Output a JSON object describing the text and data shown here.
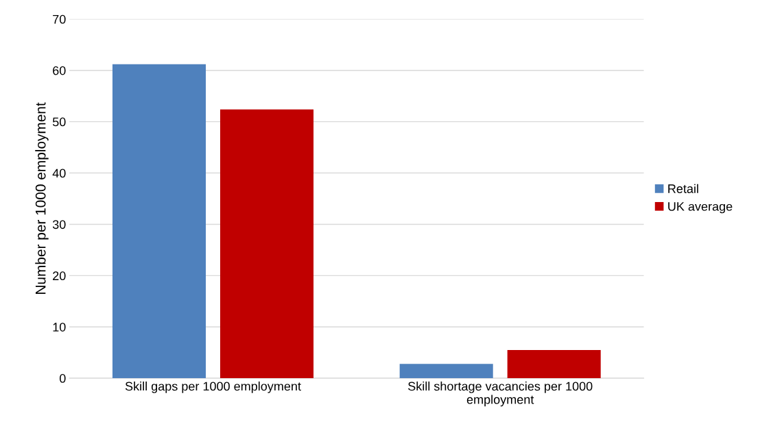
{
  "chart_data": {
    "type": "bar",
    "ylabel": "Number per 1000 employment",
    "categories": [
      "Skill gaps per 1000 employment",
      "Skill shortage vacancies per 1000 employment"
    ],
    "series": [
      {
        "name": "Retail",
        "color": "#4f81bd",
        "values": [
          61.2,
          2.8
        ]
      },
      {
        "name": "UK average",
        "color": "#c00000",
        "values": [
          52.4,
          5.5
        ]
      }
    ],
    "ylim": [
      0,
      70
    ],
    "yticks": [
      0,
      10,
      20,
      30,
      40,
      50,
      60,
      70
    ],
    "grid": "y",
    "legend": "right"
  }
}
